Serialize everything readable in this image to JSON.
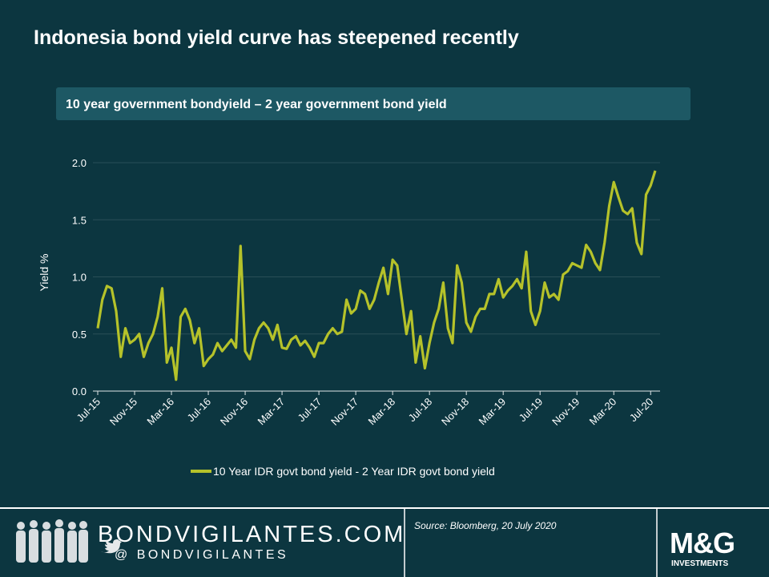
{
  "chart_data": {
    "type": "line",
    "title": "Indonesia bond yield curve has steepened recently",
    "subtitle": "10 year government bondyield – 2 year government bond yield",
    "y_label": "Yield %",
    "categories": [
      "Jul-15",
      null,
      null,
      null,
      null,
      null,
      null,
      null,
      "Nov-15",
      null,
      null,
      null,
      null,
      null,
      null,
      null,
      "Mar-16",
      null,
      null,
      null,
      null,
      null,
      null,
      null,
      "Jul-16",
      null,
      null,
      null,
      null,
      null,
      null,
      null,
      "Nov-16",
      null,
      null,
      null,
      null,
      null,
      null,
      null,
      "Mar-17",
      null,
      null,
      null,
      null,
      null,
      null,
      null,
      "Jul-17",
      null,
      null,
      null,
      null,
      null,
      null,
      null,
      "Nov-17",
      null,
      null,
      null,
      null,
      null,
      null,
      null,
      "Mar-18",
      null,
      null,
      null,
      null,
      null,
      null,
      null,
      "Jul-18",
      null,
      null,
      null,
      null,
      null,
      null,
      null,
      "Nov-18",
      null,
      null,
      null,
      null,
      null,
      null,
      null,
      "Mar-19",
      null,
      null,
      null,
      null,
      null,
      null,
      null,
      "Jul-19",
      null,
      null,
      null,
      null,
      null,
      null,
      null,
      "Nov-19",
      null,
      null,
      null,
      null,
      null,
      null,
      null,
      "Mar-20",
      null,
      null,
      null,
      null,
      null,
      null,
      null,
      "Jul-20",
      null
    ],
    "series": [
      {
        "name": "10 Year IDR govt bond yield - 2 Year IDR govt bond yield",
        "color": "#b5c22a",
        "values": [
          0.55,
          0.8,
          0.92,
          0.9,
          0.7,
          0.3,
          0.55,
          0.42,
          0.45,
          0.5,
          0.3,
          0.42,
          0.5,
          0.65,
          0.9,
          0.25,
          0.38,
          0.1,
          0.65,
          0.72,
          0.62,
          0.42,
          0.55,
          0.22,
          0.28,
          0.32,
          0.42,
          0.35,
          0.4,
          0.45,
          0.38,
          1.27,
          0.35,
          0.28,
          0.45,
          0.55,
          0.6,
          0.55,
          0.45,
          0.58,
          0.38,
          0.37,
          0.45,
          0.48,
          0.4,
          0.44,
          0.38,
          0.3,
          0.42,
          0.42,
          0.5,
          0.55,
          0.5,
          0.52,
          0.8,
          0.68,
          0.72,
          0.88,
          0.85,
          0.72,
          0.8,
          0.95,
          1.08,
          0.85,
          1.15,
          1.1,
          0.8,
          0.5,
          0.7,
          0.25,
          0.48,
          0.2,
          0.42,
          0.6,
          0.72,
          0.95,
          0.55,
          0.42,
          1.1,
          0.95,
          0.6,
          0.52,
          0.65,
          0.72,
          0.72,
          0.85,
          0.85,
          0.98,
          0.82,
          0.88,
          0.92,
          0.98,
          0.9,
          1.22,
          0.7,
          0.58,
          0.7,
          0.95,
          0.82,
          0.85,
          0.8,
          1.02,
          1.05,
          1.12,
          1.1,
          1.08,
          1.28,
          1.22,
          1.12,
          1.06,
          1.3,
          1.62,
          1.83,
          1.7,
          1.58,
          1.55,
          1.6,
          1.3,
          1.2,
          1.72,
          1.8,
          1.93
        ]
      }
    ],
    "ylim": [
      0,
      2.0
    ],
    "yticks": [
      {
        "value": 0,
        "label": "0.0"
      },
      0.5,
      {
        "value": 1,
        "label": "1.0"
      },
      1.5,
      {
        "value": 2,
        "label": "2.0"
      }
    ],
    "grid": true
  },
  "footer": {
    "brand": "BONDVIGILANTES.COM",
    "handle": "@ BONDVIGILANTES",
    "source": "Source: Bloomberg, 20 July 2020",
    "logo": "M&G",
    "logo_sub": "INVESTMENTS"
  }
}
